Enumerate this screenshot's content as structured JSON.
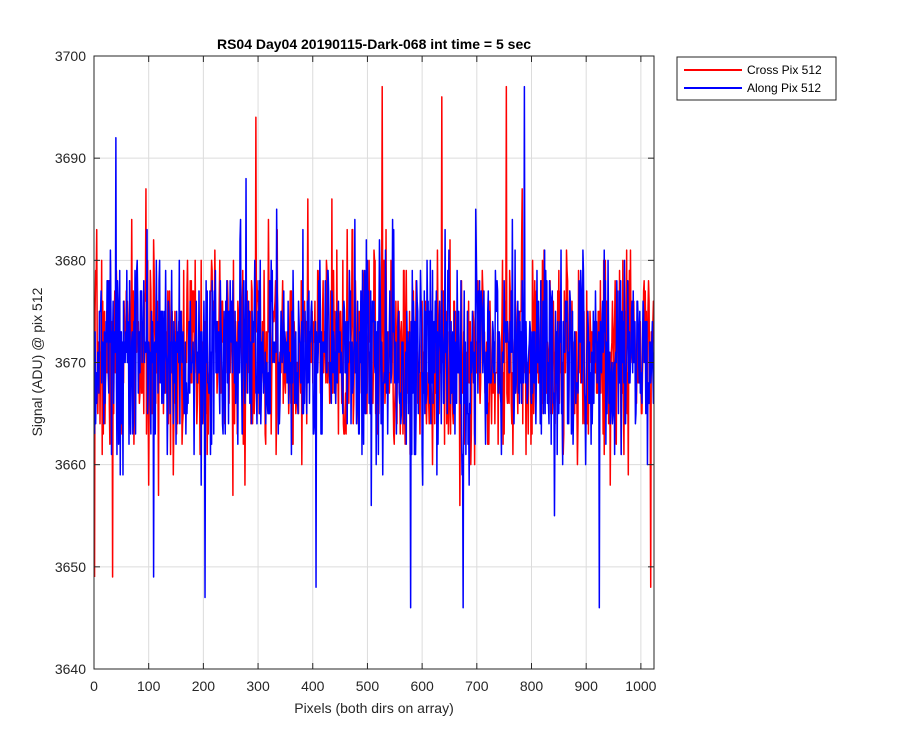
{
  "chart_data": {
    "type": "line",
    "title": "RS04 Day04 20190115-Dark-068 int time = 5 sec",
    "xlabel": "Pixels (both dirs on array)",
    "ylabel": "Signal (ADU) @ pix 512",
    "xlim": [
      0,
      1024
    ],
    "ylim": [
      3640,
      3700
    ],
    "xticks": [
      0,
      100,
      200,
      300,
      400,
      500,
      600,
      700,
      800,
      900,
      1000
    ],
    "yticks": [
      3640,
      3650,
      3660,
      3670,
      3680,
      3690,
      3700
    ],
    "grid": true,
    "legend_position": "outside-top-right",
    "series": [
      {
        "name": "Cross Pix 512",
        "color": "#ff0000",
        "x_start": 1,
        "x_step": 1,
        "mean": 3671,
        "noise_sd": 5,
        "noise_seed": 7,
        "peaks": [
          [
            1,
            3649
          ],
          [
            34,
            3649
          ],
          [
            296,
            3694
          ],
          [
            527,
            3697
          ],
          [
            636,
            3696
          ],
          [
            754,
            3697
          ],
          [
            1018,
            3648
          ]
        ]
      },
      {
        "name": "Along Pix 512",
        "color": "#0000ff",
        "x_start": 1,
        "x_step": 1,
        "mean": 3671,
        "noise_sd": 5,
        "noise_seed": 13,
        "peaks": [
          [
            40,
            3692
          ],
          [
            109,
            3649
          ],
          [
            203,
            3647
          ],
          [
            406,
            3648
          ],
          [
            579,
            3646
          ],
          [
            675,
            3646
          ],
          [
            787,
            3697
          ],
          [
            924,
            3646
          ]
        ]
      }
    ]
  }
}
